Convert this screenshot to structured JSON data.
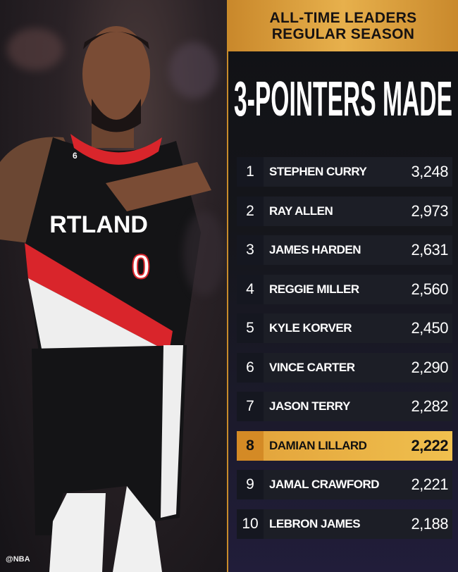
{
  "header": {
    "line1": "ALL-TIME LEADERS",
    "line2": "REGULAR SEASON"
  },
  "title": "3-POINTERS MADE",
  "leaders": [
    {
      "rank": "1",
      "name": "STEPHEN CURRY",
      "value": "3,248"
    },
    {
      "rank": "2",
      "name": "RAY ALLEN",
      "value": "2,973"
    },
    {
      "rank": "3",
      "name": "JAMES HARDEN",
      "value": "2,631"
    },
    {
      "rank": "4",
      "name": "REGGIE MILLER",
      "value": "2,560"
    },
    {
      "rank": "5",
      "name": "KYLE KORVER",
      "value": "2,450"
    },
    {
      "rank": "6",
      "name": "VINCE CARTER",
      "value": "2,290"
    },
    {
      "rank": "7",
      "name": "JASON TERRY",
      "value": "2,282"
    },
    {
      "rank": "8",
      "name": "DAMIAN LILLARD",
      "value": "2,222",
      "highlighted": true
    },
    {
      "rank": "9",
      "name": "JAMAL CRAWFORD",
      "value": "2,221"
    },
    {
      "rank": "10",
      "name": "LEBRON JAMES",
      "value": "2,188"
    }
  ],
  "photo": {
    "jersey_text": "RTLAND",
    "jersey_number": "0",
    "sleeve_number": "6"
  },
  "watermark": "@NBA",
  "colors": {
    "gold": "#e7b04c",
    "highlight": "#f0c04e",
    "panel": "#15161b",
    "jersey_red": "#d9252b"
  }
}
